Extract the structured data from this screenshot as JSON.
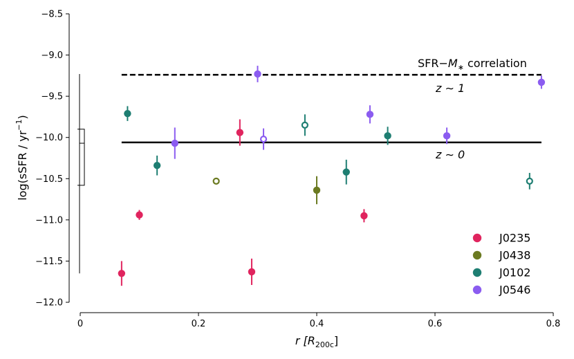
{
  "chart_data": {
    "type": "scatter",
    "xlabel": {
      "prefix": "r",
      "bracket": "[R",
      "sub": "200c",
      "close": "]"
    },
    "ylabel": {
      "main": "log(sSFR / yr",
      "sup": "−1",
      "close": ")"
    },
    "xlim": [
      0,
      0.8
    ],
    "ylim": [
      -12.0,
      -8.5
    ],
    "xticks": [
      0,
      0.2,
      0.4,
      0.6,
      0.8
    ],
    "xtick_labels": [
      "0",
      "0.2",
      "0.4",
      "0.6",
      "0.8"
    ],
    "yticks": [
      -8.5,
      -9.0,
      -9.5,
      -10.0,
      -10.5,
      -11.0,
      -11.5,
      -12.0
    ],
    "ytick_labels": [
      "−8.5",
      "−9.0",
      "−9.5",
      "−10.0",
      "−10.5",
      "−11.0",
      "−11.5",
      "−12.0"
    ],
    "reference_lines": [
      {
        "name": "sfr-mstar-z1-line",
        "y": -9.24,
        "x_range": [
          0.07,
          0.78
        ],
        "style": "dashed",
        "label": "z ∼ 1"
      },
      {
        "name": "sfr-mstar-z0-line",
        "y": -10.06,
        "x_range": [
          0.07,
          0.78
        ],
        "style": "solid",
        "label": "z ∼ 0"
      }
    ],
    "annotation": {
      "main": "SFR−",
      "italic": "M",
      "sub": "∗",
      "rest": " correlation"
    },
    "bracket": {
      "top": -9.23,
      "mid": -10.07,
      "bottom": -11.65,
      "inner_top": -9.9,
      "inner_bottom": -10.58
    },
    "series": [
      {
        "name": "J0235",
        "color": "#e0245e",
        "points": [
          {
            "x": 0.07,
            "y": -11.65,
            "err": 0.15,
            "filled": true
          },
          {
            "x": 0.1,
            "y": -10.94,
            "err": 0.06,
            "filled": true
          },
          {
            "x": 0.27,
            "y": -9.94,
            "err": 0.16,
            "filled": true
          },
          {
            "x": 0.29,
            "y": -11.63,
            "err": 0.16,
            "filled": true
          },
          {
            "x": 0.48,
            "y": -10.95,
            "err": 0.08,
            "filled": true
          }
        ]
      },
      {
        "name": "J0438",
        "color": "#6b7a21",
        "points": [
          {
            "x": 0.23,
            "y": -10.53,
            "err": 0.0,
            "filled": false
          },
          {
            "x": 0.4,
            "y": -10.64,
            "err": 0.17,
            "filled": true
          }
        ]
      },
      {
        "name": "J0102",
        "color": "#1e7e72",
        "points": [
          {
            "x": 0.08,
            "y": -9.71,
            "err": 0.09,
            "filled": true
          },
          {
            "x": 0.13,
            "y": -10.34,
            "err": 0.12,
            "filled": true
          },
          {
            "x": 0.38,
            "y": -9.85,
            "err": 0.13,
            "filled": false
          },
          {
            "x": 0.45,
            "y": -10.42,
            "err": 0.15,
            "filled": true
          },
          {
            "x": 0.52,
            "y": -9.98,
            "err": 0.11,
            "filled": true
          },
          {
            "x": 0.76,
            "y": -10.53,
            "err": 0.1,
            "filled": false
          }
        ]
      },
      {
        "name": "J0546",
        "color": "#8b5cf0",
        "points": [
          {
            "x": 0.16,
            "y": -10.07,
            "err": 0.19,
            "filled": true
          },
          {
            "x": 0.3,
            "y": -9.23,
            "err": 0.1,
            "filled": true
          },
          {
            "x": 0.31,
            "y": -10.02,
            "err": 0.13,
            "filled": false
          },
          {
            "x": 0.49,
            "y": -9.72,
            "err": 0.11,
            "filled": true
          },
          {
            "x": 0.62,
            "y": -9.98,
            "err": 0.1,
            "filled": true
          },
          {
            "x": 0.78,
            "y": -9.33,
            "err": 0.08,
            "filled": true
          }
        ]
      }
    ],
    "legend": {
      "placement": "bottom-right",
      "entries": [
        "J0235",
        "J0438",
        "J0102",
        "J0546"
      ]
    }
  }
}
